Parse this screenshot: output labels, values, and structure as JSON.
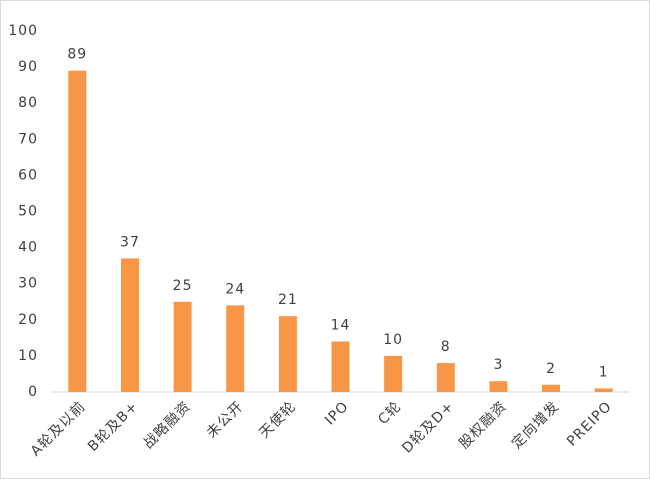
{
  "chart_data": {
    "type": "bar",
    "categories": [
      "A轮及以前",
      "B轮及B+",
      "战略融资",
      "未公开",
      "天使轮",
      "IPO",
      "C轮",
      "D轮及D+",
      "股权融资",
      "定向增发",
      "PREIPO"
    ],
    "values": [
      89,
      37,
      25,
      24,
      21,
      14,
      10,
      8,
      3,
      2,
      1
    ],
    "color": "#f79646",
    "ylim": [
      0,
      100
    ],
    "yticks": [
      0,
      10,
      20,
      30,
      40,
      50,
      60,
      70,
      80,
      90,
      100
    ],
    "grid": false
  }
}
